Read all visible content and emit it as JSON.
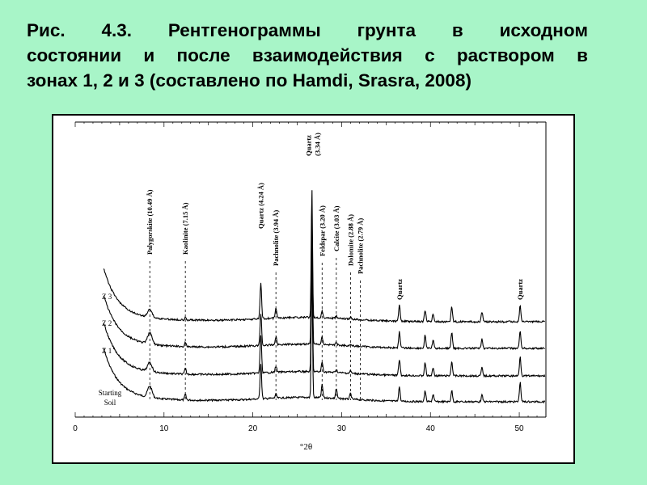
{
  "caption": {
    "line1": "Рис. 4.3. Рентгенограммы грунта в исходном",
    "line2": "состоянии и после взаимодействия с раствором в",
    "line3": "зонах 1, 2 и 3 (составлено по Hamdi, Srasra, 2008)"
  },
  "chart_data": {
    "type": "line",
    "title": "",
    "xlabel": "°2θ",
    "ylabel": "",
    "xlim": [
      0,
      53
    ],
    "xticks": [
      0,
      10,
      20,
      30,
      40,
      50
    ],
    "grid": false,
    "legend": "none",
    "series_labels_position": "left of each trace",
    "series": [
      {
        "name": "Starting\nSoil",
        "label_lines": [
          "Starting",
          "Soil"
        ],
        "offset": 0
      },
      {
        "name": "Z 1",
        "label_lines": [
          "Z 1"
        ],
        "offset": 1
      },
      {
        "name": "Z 2",
        "label_lines": [
          "Z 2"
        ],
        "offset": 2
      },
      {
        "name": "Z 3",
        "label_lines": [
          "Z 3"
        ],
        "offset": 3
      }
    ],
    "peaks": [
      {
        "x": 8.4,
        "label": "Palygorskite (10.49 Å)",
        "dashed": true
      },
      {
        "x": 12.4,
        "label": "Kaolinite (7.15 Å)",
        "dashed": true
      },
      {
        "x": 20.9,
        "label": "Quartz (4.24 Å)",
        "dashed": false
      },
      {
        "x": 22.6,
        "label": "Pachnolite (3.94 Å)",
        "dashed": true
      },
      {
        "x": 26.65,
        "label": "Quartz\n(3.34 Å)",
        "dashed": false
      },
      {
        "x": 27.8,
        "label": "Feldspar (3.20 Å)",
        "dashed": true
      },
      {
        "x": 29.4,
        "label": "Calcite (3.03 Å)",
        "dashed": true
      },
      {
        "x": 31.0,
        "label": "Dolomite (2.88 Å)",
        "dashed": true
      },
      {
        "x": 32.1,
        "label": "Pachnolite (2.79 Å)",
        "dashed": true
      },
      {
        "x": 36.5,
        "label": "Quartz",
        "dashed": false
      },
      {
        "x": 50.1,
        "label": "Quartz",
        "dashed": false
      }
    ]
  }
}
